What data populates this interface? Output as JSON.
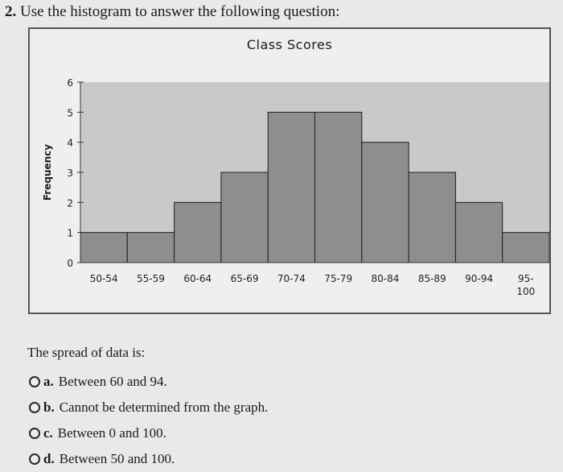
{
  "question": {
    "number": "2.",
    "text": "Use the histogram to answer the following question:"
  },
  "chart_data": {
    "type": "bar",
    "title": "Class Scores",
    "xlabel": "",
    "ylabel": "Frequency",
    "categories": [
      "50-54",
      "55-59",
      "60-64",
      "65-69",
      "70-74",
      "75-79",
      "80-84",
      "85-89",
      "90-94",
      "95-100"
    ],
    "category_lines": [
      [
        "50-54"
      ],
      [
        "55-59"
      ],
      [
        "60-64"
      ],
      [
        "65-69"
      ],
      [
        "70-74"
      ],
      [
        "75-79"
      ],
      [
        "80-84"
      ],
      [
        "85-89"
      ],
      [
        "90-94"
      ],
      [
        "95-",
        "100"
      ]
    ],
    "values": [
      1,
      1,
      2,
      3,
      5,
      5,
      4,
      3,
      2,
      1
    ],
    "ylim": [
      0,
      6
    ],
    "yticks": [
      "0",
      "1",
      "2",
      "3",
      "4",
      "5",
      "6"
    ],
    "bar_color": "#8e8e8e",
    "plot_background": "#c9c9c9",
    "grid": false,
    "legend": "none"
  },
  "prompt": "The spread of data is:",
  "options": [
    {
      "letter": "a.",
      "text": "Between 60 and 94."
    },
    {
      "letter": "b.",
      "text": "Cannot be determined from the graph."
    },
    {
      "letter": "c.",
      "text": "Between 0 and 100."
    },
    {
      "letter": "d.",
      "text": "Between 50 and 100."
    }
  ]
}
